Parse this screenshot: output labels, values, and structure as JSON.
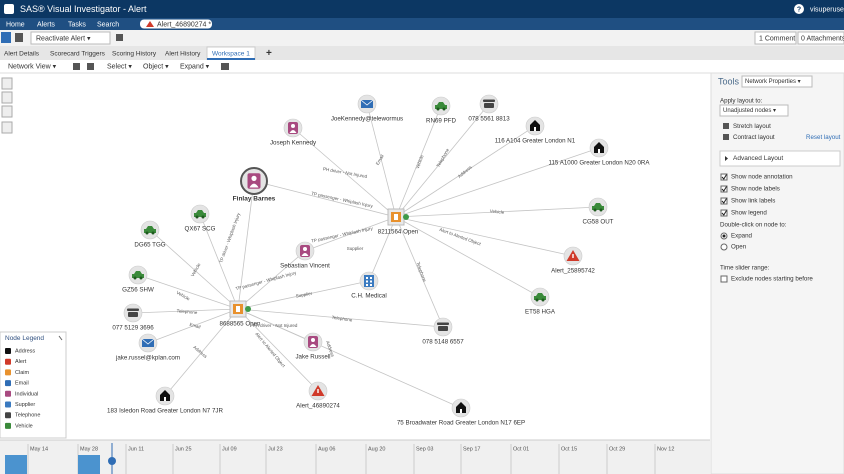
{
  "title_bar": {
    "title": "SAS® Visual Investigator - Alert",
    "help": "?",
    "user": "visuperuser"
  },
  "menu": {
    "items": [
      "Home",
      "Alerts",
      "Tasks",
      "Search"
    ],
    "open_tab": "Alert_46890274 *"
  },
  "toolbar": {
    "reactivate": "Reactivate Alert ▾",
    "comments": "1 Comment",
    "attachments": "0 Attachments"
  },
  "tabs": {
    "items": [
      "Alert Details",
      "Scorecard Triggers",
      "Scoring History",
      "Alert History",
      "Workspace 1"
    ],
    "add": "+"
  },
  "view_toolbar": {
    "view": "Network View ▾",
    "select": "Select ▾",
    "object": "Object ▾",
    "expand": "Expand ▾"
  },
  "graph": {
    "nodes": [
      "8211564 Open",
      "8688565 Open",
      "JoeKennedy@telewormus",
      "RN69 PFD",
      "078 5561 8813",
      "Joseph Kennedy",
      "116 A104 Greater London N1",
      "115 A1000 Greater London N20 0RA",
      "Finlay Barnes",
      "CG58 OUT",
      "DG65 TGG",
      "QX67 SCG",
      "Sebastian Vincent",
      "Alert_25895742",
      "GZ56 SHW",
      "C.H. Medical",
      "ET58 HGA",
      "077 5129 3696",
      "078 5148 6557",
      "jake.russel@kplan.com",
      "Jake Russell",
      "Alert_46890274",
      "183 Isledon Road Greater London N7 7JR",
      "75 Broadwater Road Greater London N17 6EP"
    ],
    "link_labels": [
      "Email",
      "Vehicle",
      "Telephone",
      "PH driver - Not Injured",
      "Address",
      "TP passenger - Whiplash Injury",
      "Vehicle",
      "TP driver - Whiplash Injury",
      "TP passenger - Whiplash Injury",
      "Alert to Alerted Object",
      "Supplier",
      "Vehicle",
      "Vehicle",
      "TP passenger - Whiplash Injury",
      "Telephone",
      "Supplier",
      "Telephone",
      "Telephone",
      "Email",
      "PH driver - Not Injured",
      "Address",
      "Alert to Alerted Object",
      "Address"
    ]
  },
  "legend": {
    "title": "Node Legend",
    "items": [
      "Address",
      "Alert",
      "Claim",
      "Email",
      "Individual",
      "Supplier",
      "Telephone",
      "Vehicle"
    ]
  },
  "timeline": {
    "labels": [
      "May 14",
      "May 28",
      "Jun 11",
      "Jun 25",
      "Jul 09",
      "Jul 23",
      "Aug 06",
      "Aug 20",
      "Sep 03",
      "Sep 17",
      "Oct 01",
      "Oct 15",
      "Oct 29",
      "Nov 12"
    ]
  },
  "tools": {
    "title": "Tools",
    "properties": "Network Properties ▾",
    "apply_layout": "Apply layout to:",
    "unadjusted": "Unadjusted nodes ▾",
    "stretch": "Stretch layout",
    "contract": "Contract layout",
    "reset": "Reset layout",
    "advanced": "Advanced Layout",
    "checks": [
      "Show node annotation",
      "Show node labels",
      "Show link labels",
      "Show legend"
    ],
    "double_click": "Double-click on node to:",
    "radios": [
      "Expand",
      "Open"
    ],
    "time_slider": "Time slider range:",
    "exclude": "Exclude nodes starting before"
  }
}
